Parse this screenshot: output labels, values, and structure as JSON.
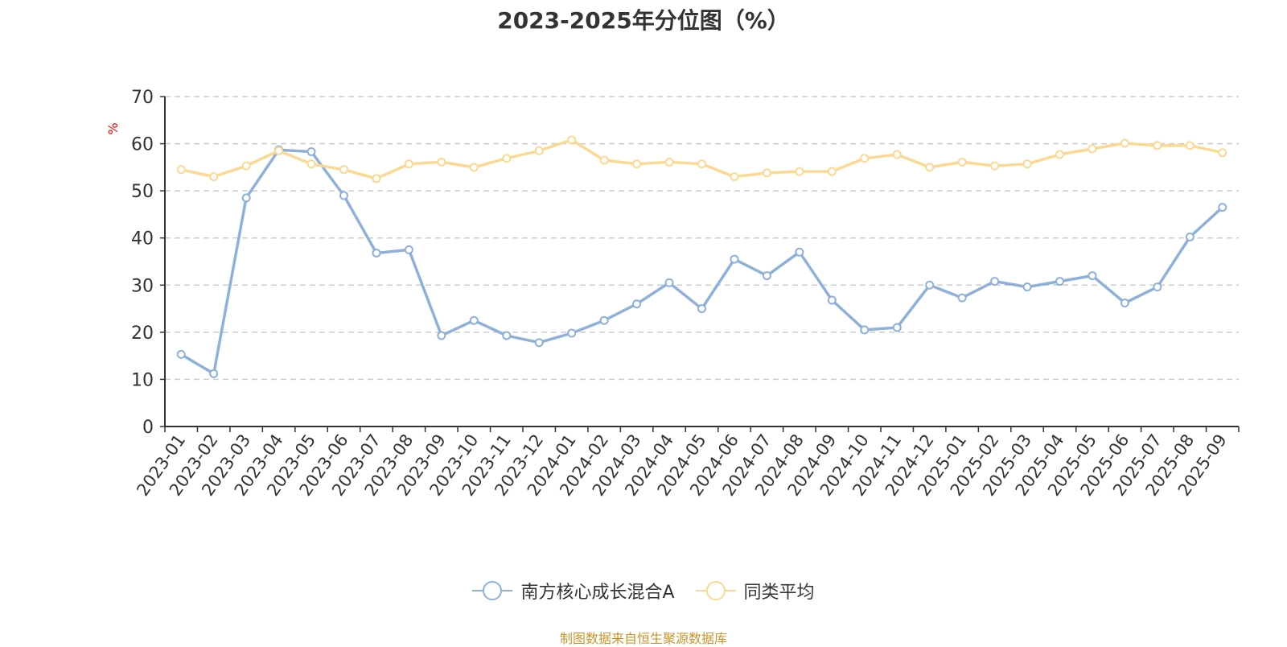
{
  "chart_data": {
    "type": "line",
    "title": "2023-2025年分位图（%）",
    "ylabel": "%",
    "xlabel": "",
    "ylim": [
      0,
      70
    ],
    "yticks": [
      0,
      10,
      20,
      30,
      40,
      50,
      60,
      70
    ],
    "grid": true,
    "legend_position": "bottom",
    "categories": [
      "2023-01",
      "2023-02",
      "2023-03",
      "2023-04",
      "2023-05",
      "2023-06",
      "2023-07",
      "2023-08",
      "2023-09",
      "2023-10",
      "2023-11",
      "2023-12",
      "2024-01",
      "2024-02",
      "2024-03",
      "2024-04",
      "2024-05",
      "2024-06",
      "2024-07",
      "2024-08",
      "2024-09",
      "2024-10",
      "2024-11",
      "2024-12",
      "2025-01",
      "2025-02",
      "2025-03",
      "2025-04",
      "2025-05",
      "2025-06",
      "2025-07",
      "2025-08",
      "2025-09"
    ],
    "series": [
      {
        "name": "南方核心成长混合A",
        "color": "#8eb0db",
        "values": [
          15.3,
          11.2,
          48.5,
          58.7,
          58.3,
          49.0,
          36.8,
          37.5,
          19.3,
          22.5,
          19.3,
          17.8,
          19.8,
          22.5,
          26.0,
          30.5,
          25.0,
          35.5,
          32.0,
          37.0,
          26.8,
          20.5,
          21.0,
          30.0,
          27.3,
          30.8,
          29.6,
          30.8,
          32.0,
          26.2,
          29.6,
          40.2,
          46.5
        ]
      },
      {
        "name": "同类平均",
        "color": "#fcd992",
        "values": [
          54.5,
          53.0,
          55.3,
          58.5,
          55.7,
          54.5,
          52.6,
          55.7,
          56.1,
          55.0,
          56.9,
          58.5,
          60.8,
          56.5,
          55.7,
          56.1,
          55.7,
          53.0,
          53.8,
          54.1,
          54.1,
          56.9,
          57.7,
          55.0,
          56.1,
          55.3,
          55.7,
          57.7,
          58.9,
          60.1,
          59.6,
          59.6,
          58.1
        ]
      }
    ]
  },
  "footer": {
    "source": "制图数据来自恒生聚源数据库"
  }
}
